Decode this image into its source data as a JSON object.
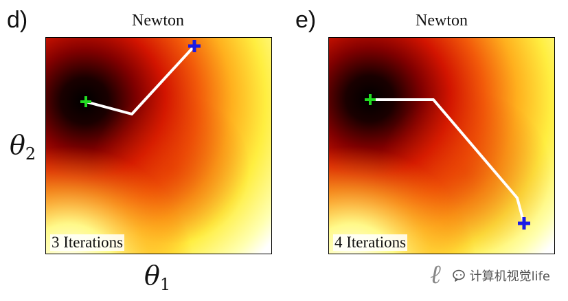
{
  "panels": [
    {
      "letter": "d)",
      "title": "Newton",
      "iterations_label": "3 Iterations",
      "axis_x": "θ",
      "axis_x_sub": "1",
      "axis_y": "θ",
      "axis_y_sub": "2",
      "colors": {
        "path": "#ffffff",
        "start_marker": "#1a1ae6",
        "minimum_marker": "#22dd22"
      }
    },
    {
      "letter": "e)",
      "title": "Newton",
      "iterations_label": "4 Iterations",
      "axis_x_partial": "ℓ",
      "colors": {
        "path": "#ffffff",
        "start_marker": "#1a1ae6",
        "minimum_marker": "#22dd22"
      }
    }
  ],
  "watermark": {
    "text": "计算机视觉life",
    "icon": "chat-bubble-icon"
  }
}
